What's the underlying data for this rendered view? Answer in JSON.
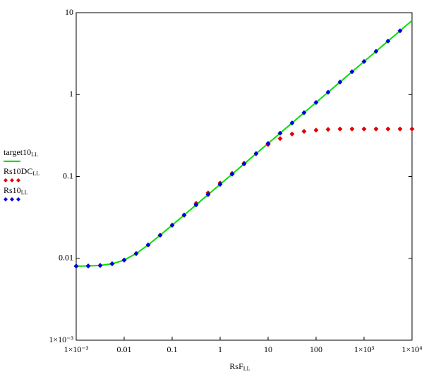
{
  "chart_data": {
    "type": "scatter",
    "log_x": true,
    "log_y": true,
    "x_label": "RsF",
    "x_label_sub": "LL",
    "x": [
      0.001,
      0.00178,
      0.00316,
      0.00562,
      0.01,
      0.0178,
      0.0316,
      0.0562,
      0.1,
      0.178,
      0.316,
      0.562,
      1,
      1.78,
      3.16,
      5.62,
      10,
      17.8,
      31.6,
      56.2,
      100,
      178,
      316,
      562,
      1000,
      1778,
      3162,
      5623,
      10000
    ],
    "series": [
      {
        "name": "target10",
        "name_sub": "LL",
        "mark": "line",
        "color": "#00e000",
        "values": [
          0.00802,
          0.00806,
          0.00819,
          0.00857,
          0.00951,
          0.01143,
          0.01457,
          0.01912,
          0.0254,
          0.0337,
          0.045,
          0.06,
          0.08,
          0.1067,
          0.1423,
          0.1897,
          0.253,
          0.337,
          0.45,
          0.6,
          0.8,
          1.067,
          1.423,
          1.897,
          2.53,
          3.37,
          4.5,
          6.0,
          8.0
        ]
      },
      {
        "name": "Rs10DC",
        "name_sub": "LL",
        "mark": "diamond",
        "color": "#e00000",
        "values": [
          0.00802,
          0.00806,
          0.00819,
          0.00857,
          0.00951,
          0.01143,
          0.01457,
          0.01912,
          0.0254,
          0.0337,
          0.047,
          0.063,
          0.083,
          0.109,
          0.145,
          0.19,
          0.245,
          0.29,
          0.33,
          0.355,
          0.368,
          0.375,
          0.38,
          0.38,
          0.38,
          0.38,
          0.38,
          0.38,
          0.38
        ]
      },
      {
        "name": "Rs10",
        "name_sub": "LL",
        "mark": "diamond",
        "color": "#0000e0",
        "values": [
          0.00802,
          0.00806,
          0.00819,
          0.00857,
          0.00951,
          0.01143,
          0.01457,
          0.01912,
          0.0254,
          0.0337,
          0.045,
          0.06,
          0.08,
          0.1067,
          0.1423,
          0.1897,
          0.253,
          0.337,
          0.45,
          0.6,
          0.8,
          1.067,
          1.423,
          1.897,
          2.53,
          3.37,
          4.5,
          6.0,
          null
        ]
      }
    ],
    "xlim": [
      0.001,
      10000
    ],
    "ylim": [
      0.001,
      10
    ],
    "xticks": [
      {
        "value": 0.001,
        "label": "1×10⁻³"
      },
      0.01,
      0.1,
      1,
      10,
      100,
      {
        "value": 1000,
        "label": "1×10³"
      },
      {
        "value": 10000,
        "label": "1×10⁴"
      }
    ],
    "yticks": [
      {
        "value": 0.001,
        "label": "1×10⁻³"
      },
      0.01,
      0.1,
      1,
      10
    ],
    "legend": "left"
  }
}
